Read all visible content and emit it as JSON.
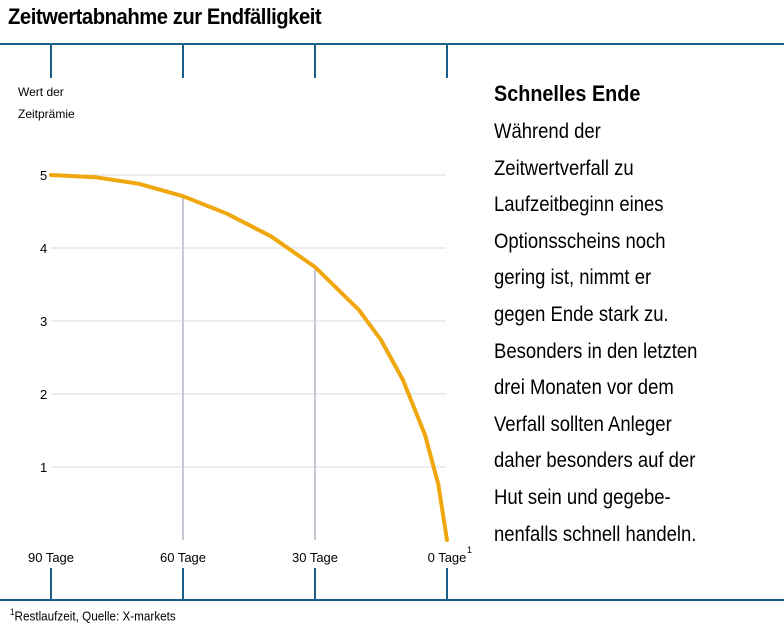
{
  "title": "Zeitwertabnahme zur Endfälligkeit",
  "chart_data": {
    "type": "line",
    "ylabel_lines": [
      "Wert der",
      "Zeitprämie"
    ],
    "x_ticks": [
      {
        "days": 90,
        "label": "90 Tage",
        "superscript": ""
      },
      {
        "days": 60,
        "label": "60 Tage",
        "superscript": ""
      },
      {
        "days": 30,
        "label": "30 Tage",
        "superscript": ""
      },
      {
        "days": 0,
        "label": "0 Tage",
        "superscript": "1"
      }
    ],
    "y_ticks": [
      1,
      2,
      3,
      4,
      5
    ],
    "ylim": [
      0,
      5
    ],
    "xlim": [
      0,
      90
    ],
    "x_direction": "descending",
    "grid": true,
    "series": [
      {
        "color": "#EFA70D",
        "points": [
          {
            "days": 90,
            "value": 5.0
          },
          {
            "days": 80,
            "value": 4.97
          },
          {
            "days": 70,
            "value": 4.88
          },
          {
            "days": 60,
            "value": 4.71
          },
          {
            "days": 50,
            "value": 4.47
          },
          {
            "days": 40,
            "value": 4.16
          },
          {
            "days": 30,
            "value": 3.74
          },
          {
            "days": 20,
            "value": 3.15
          },
          {
            "days": 15,
            "value": 2.74
          },
          {
            "days": 10,
            "value": 2.19
          },
          {
            "days": 5,
            "value": 1.44
          },
          {
            "days": 2,
            "value": 0.77
          },
          {
            "days": 0,
            "value": 0
          }
        ]
      }
    ],
    "colors": {
      "axis": "#1B5E8C",
      "grid": "#D8D8D8",
      "vline": "#C5C8D6"
    }
  },
  "sidebar": {
    "title": "Schnelles Ende",
    "body_lines": [
      "Während der",
      "Zeitwertverfall zu",
      "Laufzeitbeginn eines",
      "Optionsscheins noch",
      "gering ist, nimmt er",
      "gegen Ende stark zu.",
      "Besonders in den letzten",
      "drei Monaten vor dem",
      "Verfall sollten Anleger",
      "daher besonders auf der",
      "Hut sein und gegebe-",
      "nenfalls schnell handeln."
    ]
  },
  "footnote": {
    "marker": "1",
    "text": "Restlaufzeit, Quelle: X-markets"
  }
}
